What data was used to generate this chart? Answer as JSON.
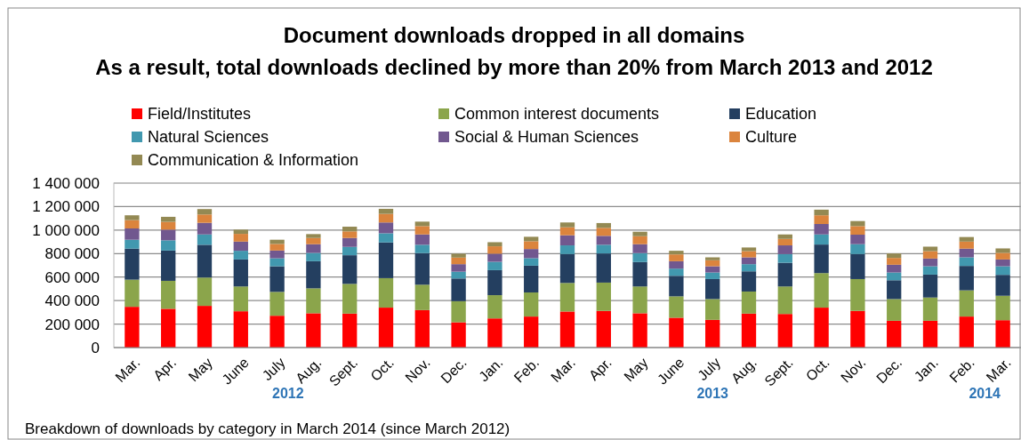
{
  "chart_data": {
    "type": "bar",
    "stacked": true,
    "title": "Document downloads dropped in all domains",
    "subtitle": "As a result, total downloads declined by more than 20% from March 2013 and 2012",
    "categories": [
      "Mar.",
      "Apr.",
      "May",
      "June",
      "July",
      "Aug.",
      "Sept.",
      "Oct.",
      "Nov.",
      "Dec.",
      "Jan.",
      "Feb.",
      "Mar.",
      "Apr.",
      "May",
      "June",
      "July",
      "Aug.",
      "Sept.",
      "Oct.",
      "Nov.",
      "Dec.",
      "Jan.",
      "Feb.",
      "Mar."
    ],
    "series": [
      {
        "name": "Field/Institutes",
        "color": "#ff0000",
        "values": [
          347000,
          330000,
          355000,
          309000,
          271000,
          292000,
          289000,
          340000,
          319000,
          215000,
          248000,
          264000,
          307000,
          312000,
          292000,
          254000,
          236000,
          289000,
          286000,
          340000,
          312000,
          228000,
          228000,
          264000,
          233000
        ]
      },
      {
        "name": "Common interest documents",
        "color": "#8ba54b",
        "values": [
          231000,
          238000,
          241000,
          211000,
          203000,
          212000,
          253000,
          251000,
          216000,
          180000,
          198000,
          205000,
          243000,
          241000,
          228000,
          182000,
          177000,
          188000,
          234000,
          294000,
          271000,
          185000,
          198000,
          223000,
          208000
        ]
      },
      {
        "name": "Education",
        "color": "#243f60",
        "values": [
          264000,
          258000,
          279000,
          230000,
          218000,
          231000,
          244000,
          304000,
          269000,
          193000,
          213000,
          228000,
          246000,
          248000,
          208000,
          175000,
          170000,
          172000,
          202000,
          243000,
          213000,
          160000,
          195000,
          208000,
          178000
        ]
      },
      {
        "name": "Natural Sciences",
        "color": "#4198af",
        "values": [
          76000,
          87000,
          88000,
          74000,
          68000,
          71000,
          71000,
          78000,
          71000,
          58000,
          71000,
          64000,
          74000,
          74000,
          76000,
          61000,
          56000,
          61000,
          74000,
          86000,
          84000,
          66000,
          71000,
          73000,
          73000
        ]
      },
      {
        "name": "Social & Human Sciences",
        "color": "#71588f",
        "values": [
          96000,
          91000,
          99000,
          78000,
          66000,
          74000,
          76000,
          92000,
          88000,
          64000,
          69000,
          78000,
          86000,
          76000,
          76000,
          63000,
          53000,
          58000,
          74000,
          89000,
          81000,
          66000,
          66000,
          74000,
          58000
        ]
      },
      {
        "name": "Culture",
        "color": "#db843d",
        "values": [
          71000,
          66000,
          71000,
          66000,
          56000,
          53000,
          56000,
          73000,
          71000,
          56000,
          63000,
          66000,
          68000,
          68000,
          68000,
          58000,
          51000,
          53000,
          55000,
          74000,
          73000,
          58000,
          63000,
          60000,
          56000
        ]
      },
      {
        "name": "Communication & Information",
        "color": "#938953",
        "values": [
          41000,
          43000,
          46000,
          36000,
          36000,
          33000,
          40000,
          43000,
          38000,
          33000,
          35000,
          38000,
          41000,
          41000,
          38000,
          31000,
          25000,
          31000,
          38000,
          48000,
          43000,
          38000,
          38000,
          39000,
          38000
        ]
      }
    ],
    "ylim": [
      0,
      1400000
    ],
    "yticks": [
      0,
      {
        "value": 200000,
        "label": "200 000"
      },
      {
        "value": 400000,
        "label": "400 000"
      },
      {
        "value": 600000,
        "label": "600 000"
      },
      {
        "value": 800000,
        "label": "800 000"
      },
      {
        "value": 1000000,
        "label": "1 000 000"
      },
      {
        "value": 1200000,
        "label": "1 200 000"
      },
      {
        "value": 1400000,
        "label": "1 400 000"
      }
    ],
    "grid": "y",
    "legend": "top",
    "annotations": [
      "2012",
      "2013",
      "2014",
      "Breakdown of downloads by category in March 2014 (since March 2012)"
    ]
  }
}
